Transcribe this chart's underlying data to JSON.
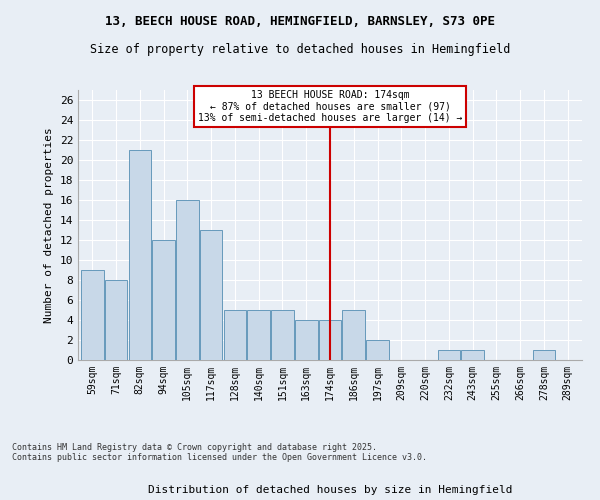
{
  "title_line1": "13, BEECH HOUSE ROAD, HEMINGFIELD, BARNSLEY, S73 0PE",
  "title_line2": "Size of property relative to detached houses in Hemingfield",
  "xlabel": "Distribution of detached houses by size in Hemingfield",
  "ylabel": "Number of detached properties",
  "categories": [
    "59sqm",
    "71sqm",
    "82sqm",
    "94sqm",
    "105sqm",
    "117sqm",
    "128sqm",
    "140sqm",
    "151sqm",
    "163sqm",
    "174sqm",
    "186sqm",
    "197sqm",
    "209sqm",
    "220sqm",
    "232sqm",
    "243sqm",
    "255sqm",
    "266sqm",
    "278sqm",
    "289sqm"
  ],
  "values": [
    9,
    8,
    21,
    12,
    16,
    13,
    5,
    5,
    5,
    4,
    4,
    5,
    2,
    0,
    0,
    1,
    1,
    0,
    0,
    1,
    0
  ],
  "bar_color": "#c8d8e8",
  "bar_edge_color": "#6699bb",
  "reference_line_x": 10,
  "annotation_title": "13 BEECH HOUSE ROAD: 174sqm",
  "annotation_line1": "← 87% of detached houses are smaller (97)",
  "annotation_line2": "13% of semi-detached houses are larger (14) →",
  "annotation_box_color": "#ffffff",
  "annotation_box_edge_color": "#cc0000",
  "vline_color": "#cc0000",
  "ylim": [
    0,
    27
  ],
  "yticks": [
    0,
    2,
    4,
    6,
    8,
    10,
    12,
    14,
    16,
    18,
    20,
    22,
    24,
    26
  ],
  "footer": "Contains HM Land Registry data © Crown copyright and database right 2025.\nContains public sector information licensed under the Open Government Licence v3.0.",
  "bg_color": "#e8eef5",
  "plot_bg_color": "#e8eef5"
}
